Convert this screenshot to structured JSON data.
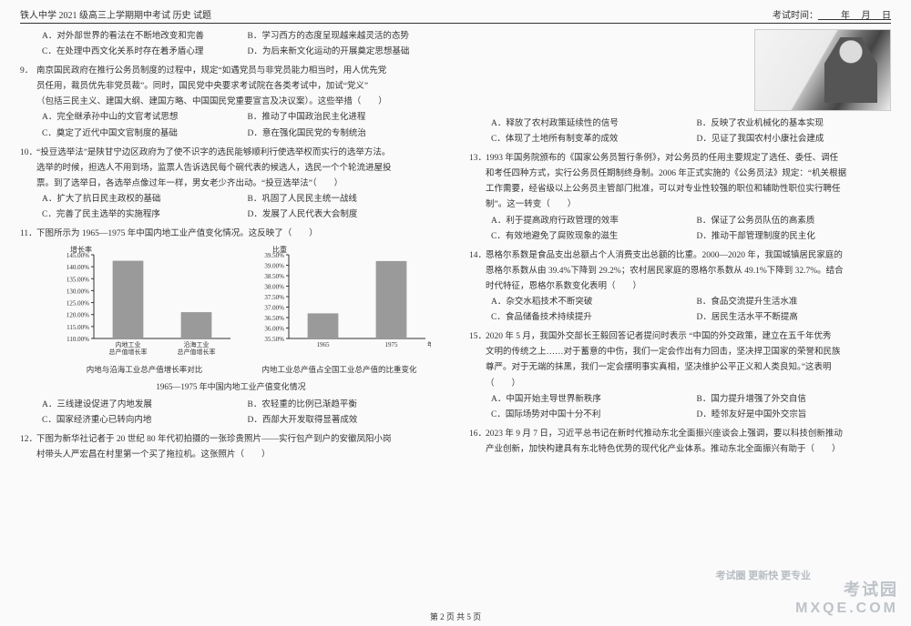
{
  "header": {
    "left": "铁人中学 2021 级高三上学期期中考试    历史  试题",
    "right_prefix": "考试时间：",
    "right_fill": "          年     月     日"
  },
  "left_col": {
    "pre_opts": {
      "A": "A．对外部世界的看法在不断地改变和完善",
      "B": "B．学习西方的态度呈现越来越灵活的态势",
      "C": "C．在处理中西文化关系时存在着矛盾心理",
      "D": "D．为后来新文化运动的开展奠定思想基础"
    },
    "q9": {
      "num": "9．",
      "l1": "南京国民政府在推行公务员制度的过程中，规定“如遇党员与非党员能力相当时，用人优先党",
      "l2": "员任用，裁员优先非党员裁”。同时，国民党中央要求考试院在各类考试中，加试“党义”",
      "l3": "（包括三民主义、建国大纲、建国方略、中国国民党重要宣言及决议案）。这些举措（　　）",
      "opts": {
        "A": "A．完全继承孙中山的文官考试思想",
        "B": "B．推动了中国政治民主化进程",
        "C": "C．奠定了近代中国文官制度的基础",
        "D": "D．意在强化国民党的专制统治"
      }
    },
    "q10": {
      "num": "10．",
      "l1": "“投豆选举法”是陕甘宁边区政府为了使不识字的选民能够顺利行使选举权而实行的选举方法。",
      "l2": "选举的时候，担选人不用到场，监票人告诉选民每个碗代表的候选人，选民一个个轮流进屋投",
      "l3": "票。到了选举日，各选举点像过年一样，男女老少齐出动。“投豆选举法”（　　）",
      "opts": {
        "A": "A．扩大了抗日民主政权的基础",
        "B": "B．巩固了人民民主统一战线",
        "C": "C．完善了民主选举的实施程序",
        "D": "D．发展了人民代表大会制度"
      }
    },
    "q11": {
      "num": "11．",
      "l1": "下图所示为 1965—1975 年中国内地工业产值变化情况。这反映了（　　）",
      "chart1": {
        "type": "bar",
        "ylabel": "增长率",
        "categories": [
          "内地工业\\n总产值增长率",
          "沿海工业\\n总产值增长率"
        ],
        "values": [
          142.5,
          121.0
        ],
        "ylim": [
          110,
          145
        ],
        "ytick_step": 5,
        "yticks": [
          "110.00%",
          "115.00%",
          "120.00%",
          "125.00%",
          "130.00%",
          "135.00%",
          "140.00%",
          "145.00%"
        ],
        "bar_color": "#9a9a9a",
        "axis_color": "#333333",
        "title": "内地与沿海工业总产值增长率对比",
        "label_fontsize": 8
      },
      "chart2": {
        "type": "bar",
        "ylabel": "比重",
        "categories": [
          "1965",
          "1975"
        ],
        "xlabel": "年份",
        "values": [
          36.7,
          39.2
        ],
        "ylim": [
          35.5,
          39.5
        ],
        "ytick_step": 0.5,
        "yticks": [
          "35.50%",
          "36.00%",
          "36.50%",
          "37.00%",
          "37.50%",
          "38.00%",
          "38.50%",
          "39.00%",
          "39.50%"
        ],
        "bar_color": "#9a9a9a",
        "axis_color": "#333333",
        "title": "内地工业总产值占全国工业总产值的比重变化",
        "label_fontsize": 8
      },
      "super_caption": "1965—1975 年中国内地工业产值变化情况",
      "opts": {
        "A": "A．三线建设促进了内地发展",
        "B": "B．农轻重的比例已渐趋平衡",
        "C": "C．国家经济重心已转向内地",
        "D": "D．西部大开发取得显著成效"
      }
    },
    "q12": {
      "num": "12．",
      "l1": "下图为新华社记者于 20 世纪 80 年代初拍摄的一张珍贵照片——实行包产到户的安徽凤阳小岗",
      "l2": "村带头人严宏昌在村里第一个买了拖拉机。这张照片（　　）"
    }
  },
  "right_col": {
    "q12_opts": {
      "A": "A．释放了农村政策延续性的信号",
      "B": "B．反映了农业机械化的基本实现",
      "C": "C．体现了土地所有制变革的成效",
      "D": "D．见证了我国农村小康社会建成"
    },
    "q13": {
      "num": "13．",
      "l1": "1993 年国务院颁布的《国家公务员暂行条例》，对公务员的任用主要规定了选任、委任、调任",
      "l2": "和考任四种方式，实行公务员任期制终身制。2006 年正式实施的《公务员法》规定：“机关根据",
      "l3": "工作需要，经省级以上公务员主管部门批准，可以对专业性较强的职位和辅助性职位实行聘任",
      "l4": "制”。这一转变（　　）",
      "opts": {
        "A": "A．利于提高政府行政管理的效率",
        "B": "B．保证了公务员队伍的高素质",
        "C": "C．有效地避免了腐败现象的滋生",
        "D": "D．推动干部管理制度的民主化"
      }
    },
    "q14": {
      "num": "14．",
      "l1": "恩格尔系数是食品支出总额占个人消费支出总额的比重。2000—2020 年，我国城镇居民家庭的",
      "l2": "恩格尔系数从由 39.4%下降到 29.2%；农村居民家庭的恩格尔系数从 49.1%下降到 32.7%。结合",
      "l3": "时代特征，恩格尔系数变化表明（　　）",
      "opts": {
        "A": "A．杂交水稻技术不断突破",
        "B": "B．食品交流提升生活水准",
        "C": "C．食品储备技术持续提升",
        "D": "D．居民生活水平不断提高"
      }
    },
    "q15": {
      "num": "15．",
      "l1": "2020 年 5 月，我国外交部长王毅回答记者提问时表示 “中国的外交政策，建立在五千年优秀",
      "l2": "文明的传统之上……对于蓄意的中伤，我们一定会作出有力回击，坚决捍卫国家的荣誉和民族",
      "l3": "尊严。对于无端的抹黑，我们一定会摆明事实真相，坚决维护公平正义和人类良知。”这表明",
      "l4": "（　　）",
      "opts": {
        "A": "A．中国开始主导世界新秩序",
        "B": "B．国力提升增强了外交自信",
        "C": "C．国际场势对中国十分不利",
        "D": "D．睦邻友好是中国外交宗旨"
      }
    },
    "q16": {
      "num": "16．",
      "l1": "2023 年 9 月 7 日，习近平总书记在新时代推动东北全面振兴座谈会上强调，要以科技创新推动",
      "l2": "产业创新，加快构建具有东北特色优势的现代化产业体系。推动东北全面振兴有助于（　　）"
    }
  },
  "footer": "第 2 页 共 5 页",
  "watermark": {
    "cn": "考试园",
    "en": "MXQE.COM",
    "tag": "考试圈 更新快 更专业"
  }
}
